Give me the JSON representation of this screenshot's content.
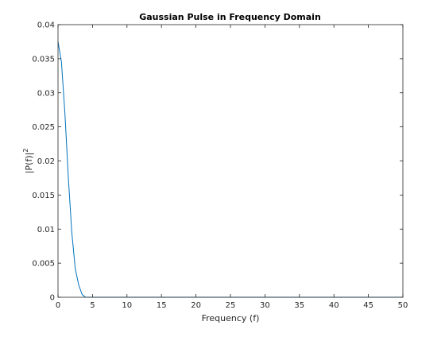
{
  "chart_data": {
    "type": "line",
    "title": "Gaussian Pulse in Frequency Domain",
    "xlabel": "Frequency (f)",
    "ylabel": "|P(f)|",
    "ylabel_superscript": "2",
    "xlim": [
      0,
      50
    ],
    "ylim": [
      0,
      0.04
    ],
    "xticks": [
      0,
      5,
      10,
      15,
      20,
      25,
      30,
      35,
      40,
      45,
      50
    ],
    "yticks": [
      0,
      0.005,
      0.01,
      0.015,
      0.02,
      0.025,
      0.03,
      0.035,
      0.04
    ],
    "xtick_labels": [
      "0",
      "5",
      "10",
      "15",
      "20",
      "25",
      "30",
      "35",
      "40",
      "45",
      "50"
    ],
    "ytick_labels": [
      "0",
      "0.005",
      "0.01",
      "0.015",
      "0.02",
      "0.025",
      "0.03",
      "0.035",
      "0.04"
    ],
    "grid": false,
    "line_color": "#0072bd",
    "series": [
      {
        "x": [
          0,
          0.5,
          1.0,
          1.5,
          2.0,
          2.5,
          3.0,
          3.5,
          4.0,
          5,
          10,
          15,
          20,
          25,
          30,
          35,
          40,
          45,
          50
        ],
        "y": [
          0.0375,
          0.0345,
          0.027,
          0.0175,
          0.0095,
          0.0042,
          0.0018,
          0.0004,
          0.0,
          0.0,
          0.0,
          0.0,
          0.0,
          0.0,
          0.0,
          0.0,
          0.0,
          0.0,
          0.0
        ]
      }
    ]
  }
}
